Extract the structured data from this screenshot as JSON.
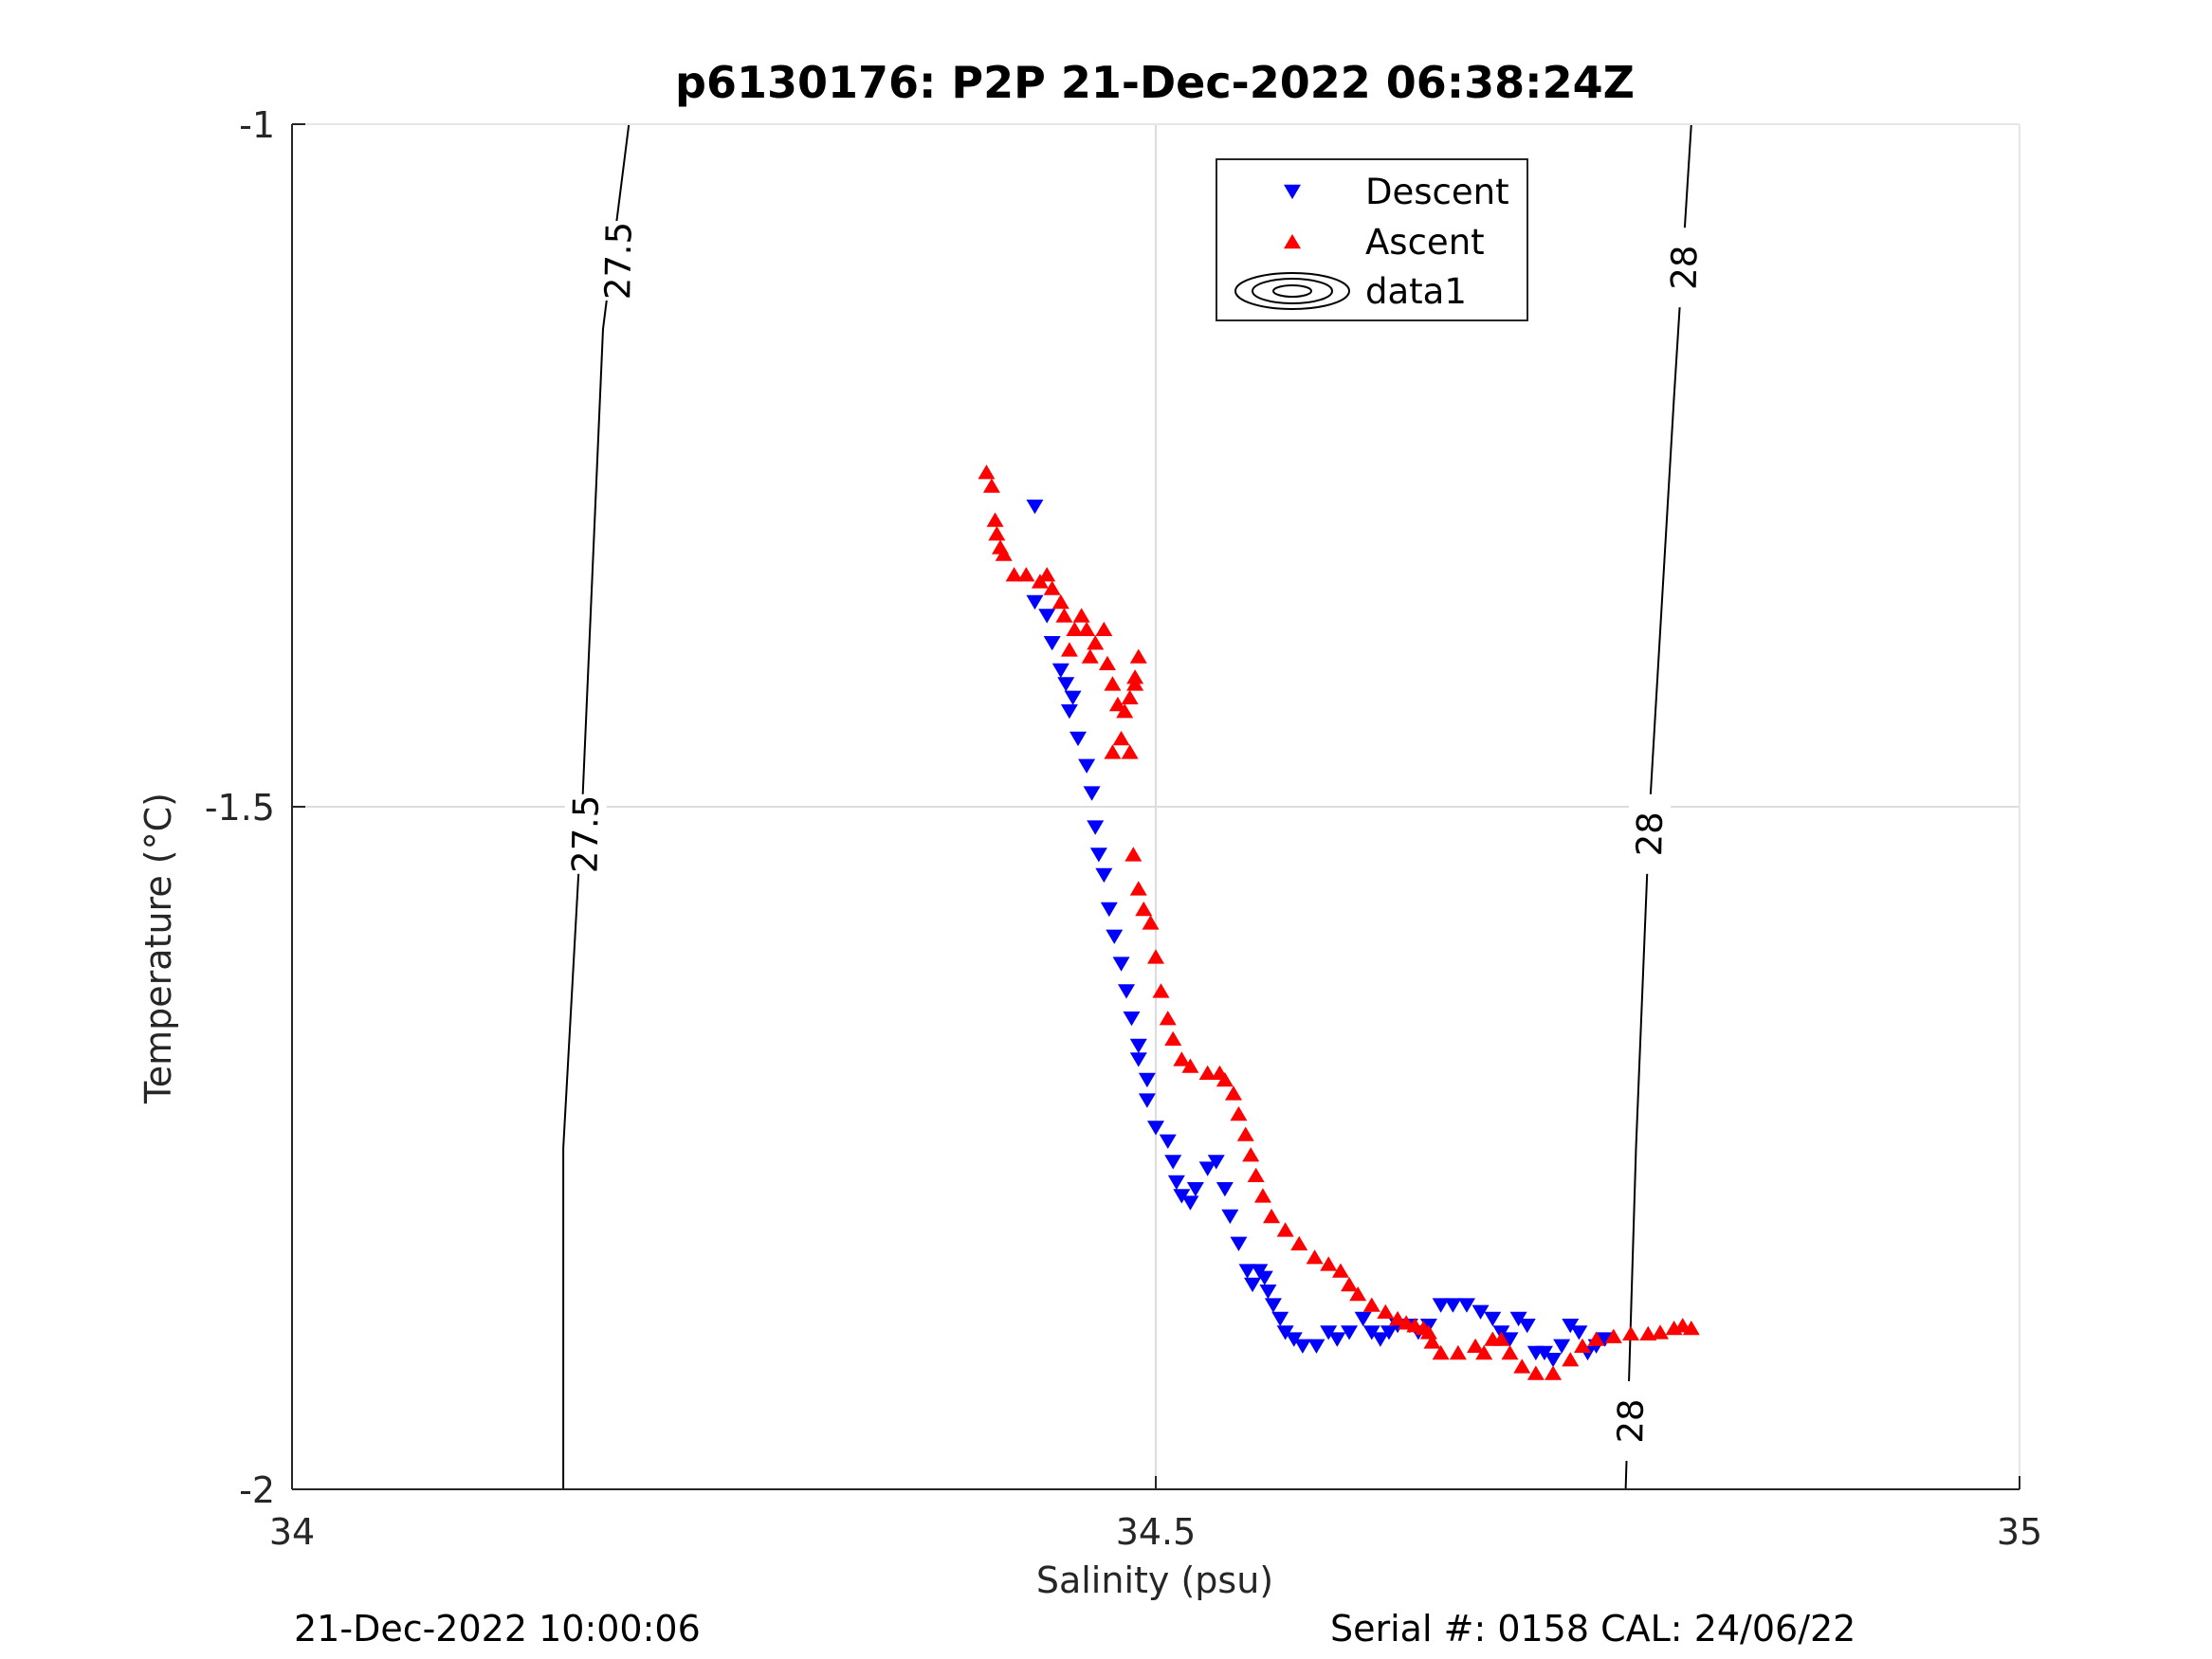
{
  "chart_data": {
    "type": "scatter",
    "title": "p6130176: P2P 21-Dec-2022 06:38:24Z",
    "xlabel": "Salinity (psu)",
    "ylabel": "Temperature (°C)",
    "xlim": [
      34,
      35
    ],
    "ylim": [
      -2,
      -1
    ],
    "x_ticks": [
      34,
      34.5,
      35
    ],
    "x_tick_labels": [
      "34",
      "34.5",
      "35"
    ],
    "y_ticks": [
      -1,
      -1.5,
      -2
    ],
    "y_tick_labels": [
      "-1",
      "-1.5",
      "-2"
    ],
    "grid": true,
    "legend_position": "top",
    "legend": [
      {
        "label": "Descent",
        "color": "#0000ff",
        "marker": "triangle-down"
      },
      {
        "label": "Ascent",
        "color": "#ff0000",
        "marker": "triangle-up"
      },
      {
        "label": "data1",
        "color": "#000000",
        "marker": "contour"
      }
    ],
    "isopycnals": [
      {
        "label": "27.5",
        "points": [
          [
            34.195,
            -1.0
          ],
          [
            34.18,
            -1.15
          ],
          [
            34.168,
            -1.5
          ],
          [
            34.157,
            -1.75
          ],
          [
            34.157,
            -2.0
          ]
        ],
        "labels_at": [
          [
            34.189,
            -1.1
          ],
          [
            34.17,
            -1.52
          ]
        ]
      },
      {
        "label": "28",
        "points": [
          [
            34.81,
            -1.0
          ],
          [
            34.8,
            -1.2
          ],
          [
            34.786,
            -1.5
          ],
          [
            34.778,
            -1.75
          ],
          [
            34.772,
            -2.0
          ]
        ],
        "labels_at": [
          [
            34.806,
            -1.105
          ],
          [
            34.786,
            -1.52
          ],
          [
            34.775,
            -1.95
          ]
        ]
      }
    ],
    "series": [
      {
        "name": "Descent",
        "color": "#0000ff",
        "marker": "triangle-down",
        "points": [
          [
            34.43,
            -1.28
          ],
          [
            34.43,
            -1.35
          ],
          [
            34.437,
            -1.36
          ],
          [
            34.44,
            -1.38
          ],
          [
            34.445,
            -1.4
          ],
          [
            34.448,
            -1.41
          ],
          [
            34.452,
            -1.42
          ],
          [
            34.45,
            -1.43
          ],
          [
            34.455,
            -1.45
          ],
          [
            34.46,
            -1.47
          ],
          [
            34.463,
            -1.49
          ],
          [
            34.465,
            -1.515
          ],
          [
            34.467,
            -1.535
          ],
          [
            34.47,
            -1.55
          ],
          [
            34.473,
            -1.575
          ],
          [
            34.476,
            -1.595
          ],
          [
            34.48,
            -1.615
          ],
          [
            34.483,
            -1.635
          ],
          [
            34.486,
            -1.655
          ],
          [
            34.49,
            -1.675
          ],
          [
            34.49,
            -1.685
          ],
          [
            34.495,
            -1.7
          ],
          [
            34.495,
            -1.715
          ],
          [
            34.5,
            -1.735
          ],
          [
            34.507,
            -1.745
          ],
          [
            34.51,
            -1.76
          ],
          [
            34.512,
            -1.775
          ],
          [
            34.515,
            -1.785
          ],
          [
            34.52,
            -1.79
          ],
          [
            34.523,
            -1.78
          ],
          [
            34.53,
            -1.765
          ],
          [
            34.535,
            -1.76
          ],
          [
            34.54,
            -1.78
          ],
          [
            34.543,
            -1.8
          ],
          [
            34.548,
            -1.82
          ],
          [
            34.553,
            -1.84
          ],
          [
            34.556,
            -1.85
          ],
          [
            34.56,
            -1.84
          ],
          [
            34.563,
            -1.845
          ],
          [
            34.565,
            -1.855
          ],
          [
            34.568,
            -1.865
          ],
          [
            34.572,
            -1.875
          ],
          [
            34.575,
            -1.885
          ],
          [
            34.58,
            -1.89
          ],
          [
            34.585,
            -1.895
          ],
          [
            34.593,
            -1.895
          ],
          [
            34.6,
            -1.885
          ],
          [
            34.605,
            -1.89
          ],
          [
            34.612,
            -1.885
          ],
          [
            34.62,
            -1.875
          ],
          [
            34.625,
            -1.885
          ],
          [
            34.63,
            -1.89
          ],
          [
            34.635,
            -1.885
          ],
          [
            34.64,
            -1.88
          ],
          [
            34.647,
            -1.88
          ],
          [
            34.652,
            -1.885
          ],
          [
            34.658,
            -1.88
          ],
          [
            34.665,
            -1.865
          ],
          [
            34.672,
            -1.865
          ],
          [
            34.68,
            -1.865
          ],
          [
            34.688,
            -1.87
          ],
          [
            34.695,
            -1.875
          ],
          [
            34.7,
            -1.885
          ],
          [
            34.705,
            -1.89
          ],
          [
            34.71,
            -1.875
          ],
          [
            34.715,
            -1.88
          ],
          [
            34.72,
            -1.9
          ],
          [
            34.725,
            -1.9
          ],
          [
            34.73,
            -1.905
          ],
          [
            34.735,
            -1.895
          ],
          [
            34.74,
            -1.88
          ],
          [
            34.745,
            -1.885
          ],
          [
            34.75,
            -1.9
          ],
          [
            34.755,
            -1.895
          ],
          [
            34.76,
            -1.89
          ]
        ]
      },
      {
        "name": "Ascent",
        "color": "#ff0000",
        "marker": "triangle-up",
        "points": [
          [
            34.402,
            -1.255
          ],
          [
            34.405,
            -1.265
          ],
          [
            34.407,
            -1.29
          ],
          [
            34.408,
            -1.3
          ],
          [
            34.41,
            -1.31
          ],
          [
            34.412,
            -1.315
          ],
          [
            34.418,
            -1.33
          ],
          [
            34.425,
            -1.33
          ],
          [
            34.433,
            -1.335
          ],
          [
            34.437,
            -1.33
          ],
          [
            34.44,
            -1.34
          ],
          [
            34.445,
            -1.35
          ],
          [
            34.447,
            -1.36
          ],
          [
            34.45,
            -1.385
          ],
          [
            34.453,
            -1.37
          ],
          [
            34.457,
            -1.36
          ],
          [
            34.46,
            -1.37
          ],
          [
            34.462,
            -1.39
          ],
          [
            34.465,
            -1.38
          ],
          [
            34.47,
            -1.37
          ],
          [
            34.472,
            -1.395
          ],
          [
            34.475,
            -1.41
          ],
          [
            34.478,
            -1.425
          ],
          [
            34.482,
            -1.43
          ],
          [
            34.485,
            -1.42
          ],
          [
            34.488,
            -1.41
          ],
          [
            34.49,
            -1.39
          ],
          [
            34.488,
            -1.405
          ],
          [
            34.475,
            -1.46
          ],
          [
            34.485,
            -1.46
          ],
          [
            34.48,
            -1.45
          ],
          [
            34.487,
            -1.535
          ],
          [
            34.49,
            -1.56
          ],
          [
            34.493,
            -1.575
          ],
          [
            34.497,
            -1.585
          ],
          [
            34.5,
            -1.61
          ],
          [
            34.503,
            -1.635
          ],
          [
            34.507,
            -1.655
          ],
          [
            34.51,
            -1.67
          ],
          [
            34.515,
            -1.685
          ],
          [
            34.52,
            -1.69
          ],
          [
            34.53,
            -1.695
          ],
          [
            34.537,
            -1.695
          ],
          [
            34.54,
            -1.7
          ],
          [
            34.545,
            -1.71
          ],
          [
            34.548,
            -1.725
          ],
          [
            34.552,
            -1.74
          ],
          [
            34.555,
            -1.755
          ],
          [
            34.558,
            -1.77
          ],
          [
            34.562,
            -1.785
          ],
          [
            34.567,
            -1.8
          ],
          [
            34.575,
            -1.81
          ],
          [
            34.583,
            -1.82
          ],
          [
            34.592,
            -1.83
          ],
          [
            34.6,
            -1.835
          ],
          [
            34.607,
            -1.84
          ],
          [
            34.612,
            -1.85
          ],
          [
            34.617,
            -1.857
          ],
          [
            34.625,
            -1.865
          ],
          [
            34.633,
            -1.87
          ],
          [
            34.64,
            -1.875
          ],
          [
            34.645,
            -1.878
          ],
          [
            34.65,
            -1.88
          ],
          [
            34.655,
            -1.882
          ],
          [
            34.658,
            -1.885
          ],
          [
            34.66,
            -1.892
          ],
          [
            34.665,
            -1.9
          ],
          [
            34.675,
            -1.9
          ],
          [
            34.685,
            -1.895
          ],
          [
            34.69,
            -1.9
          ],
          [
            34.695,
            -1.89
          ],
          [
            34.7,
            -1.89
          ],
          [
            34.705,
            -1.9
          ],
          [
            34.712,
            -1.91
          ],
          [
            34.72,
            -1.915
          ],
          [
            34.73,
            -1.915
          ],
          [
            34.74,
            -1.905
          ],
          [
            34.747,
            -1.895
          ],
          [
            34.755,
            -1.89
          ],
          [
            34.765,
            -1.888
          ],
          [
            34.775,
            -1.886
          ],
          [
            34.785,
            -1.886
          ],
          [
            34.792,
            -1.885
          ],
          [
            34.8,
            -1.882
          ],
          [
            34.805,
            -1.88
          ],
          [
            34.81,
            -1.882
          ]
        ]
      }
    ]
  },
  "footer": {
    "left": "21-Dec-2022 10:00:06",
    "right": "Serial #: 0158  CAL: 24/06/22"
  }
}
